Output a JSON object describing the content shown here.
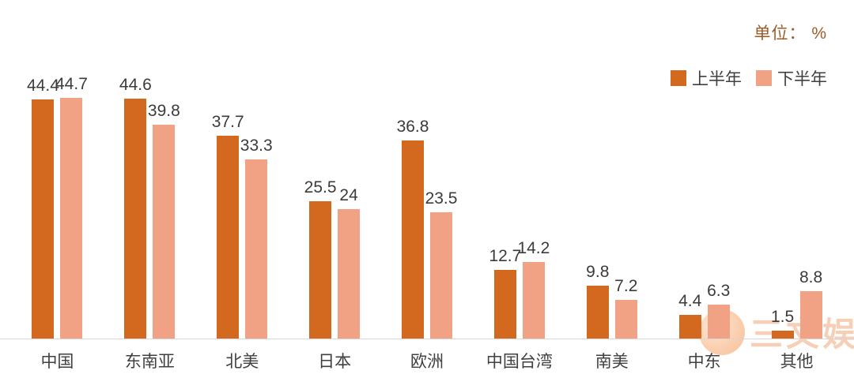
{
  "header": {
    "unit_label": "单位： %"
  },
  "legend": [
    {
      "name": "上半年",
      "color": "#d2691e"
    },
    {
      "name": "下半年",
      "color": "#f2a284"
    }
  ],
  "watermark": {
    "text": "三文娱"
  },
  "chart_data": {
    "type": "bar",
    "categories": [
      "中国",
      "东南亚",
      "北美",
      "日本",
      "欧洲",
      "中国台湾",
      "南美",
      "中东",
      "其他"
    ],
    "series": [
      {
        "name": "上半年",
        "color": "#d2691e",
        "values": [
          44.4,
          44.6,
          37.7,
          25.5,
          36.8,
          12.7,
          9.8,
          4.4,
          1.5
        ]
      },
      {
        "name": "下半年",
        "color": "#f2a284",
        "values": [
          44.7,
          39.8,
          33.3,
          24,
          23.5,
          14.2,
          7.2,
          6.3,
          8.8
        ]
      }
    ],
    "title": "",
    "xlabel": "",
    "ylabel": "",
    "ylim": [
      0,
      50
    ],
    "grid": false,
    "legend_position": "top-right",
    "value_labels": true
  }
}
